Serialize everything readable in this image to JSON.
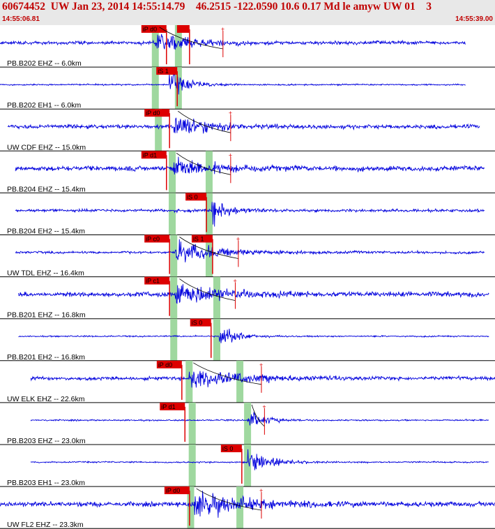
{
  "header": {
    "title": "60674452  UW Jan 23, 2014 14:55:14.79    46.2515 -122.0590 10.6 0.17 Md le amyw UW 01    3",
    "time_start": "14:55:06.81",
    "time_end": "14:55:39.00"
  },
  "colors": {
    "trace": "#0000dd",
    "pick": "#dd0000",
    "window": "#9fd89f",
    "header_text": "#c00000",
    "separator": "#000000"
  },
  "chart_data": {
    "type": "line",
    "x_unit": "seconds",
    "x_range": [
      0,
      32.19
    ],
    "channels": [
      {
        "label": "PB.B202 EHZ -- 6.0km",
        "trace_start": 0.0,
        "trace_end": 30.3,
        "p_pick": {
          "label": "iP d0",
          "time": 10.1
        },
        "s_pick": {
          "label": "",
          "time": 11.6
        },
        "s_window": 11.6,
        "p_window": 10.1,
        "onset": 10.1,
        "coda_end": 13.5,
        "amp": 0.55,
        "noise": 0.07,
        "clip": 14.5
      },
      {
        "label": "PB.B202 EH1 -- 6.0km",
        "trace_start": 0.0,
        "trace_end": 30.3,
        "p_pick": null,
        "s_pick": {
          "label": "iS 1",
          "time": 10.8
        },
        "s_window": 11.6,
        "p_window": 10.1,
        "onset": 11.0,
        "coda_end": 13.0,
        "amp": 0.6,
        "noise": 0.03,
        "clip": null
      },
      {
        "label": "UW CDF EHZ -- 15.0km",
        "trace_start": 0.5,
        "trace_end": 31.2,
        "p_pick": {
          "label": "iP d0",
          "time": 10.3
        },
        "s_pick": null,
        "s_window": null,
        "p_window": 10.3,
        "onset": 11.3,
        "coda_end": 15.0,
        "amp": 0.55,
        "noise": 0.08,
        "clip": 15.0
      },
      {
        "label": "PB.B204 EHZ -- 15.4km",
        "trace_start": 1.0,
        "trace_end": 31.5,
        "p_pick": {
          "label": "iP d1",
          "time": 10.1
        },
        "s_pick": null,
        "s_window": 13.6,
        "p_window": 11.2,
        "onset": 11.2,
        "coda_end": 15.0,
        "amp": 0.5,
        "noise": 0.1,
        "clip": 15.0
      },
      {
        "label": "PB.B204 EH2 -- 15.4km",
        "trace_start": 1.0,
        "trace_end": 31.5,
        "p_pick": null,
        "s_pick": {
          "label": "iS 0",
          "time": 12.7
        },
        "s_window": 13.6,
        "p_window": 11.2,
        "onset": 13.7,
        "coda_end": 15.5,
        "amp": 0.6,
        "noise": 0.06,
        "clip": null
      },
      {
        "label": "UW TDL EHZ -- 16.4km",
        "trace_start": 1.0,
        "trace_end": 31.5,
        "p_pick": {
          "label": "iP c0",
          "time": 10.3
        },
        "s_pick": {
          "label": "iS 1",
          "time": 13.1
        },
        "s_window": 13.6,
        "p_window": 11.3,
        "onset": 11.4,
        "coda_end": 16.0,
        "amp": 0.5,
        "noise": 0.05,
        "clip": 15.5
      },
      {
        "label": "PB.B201 EHZ -- 16.8km",
        "trace_start": 1.2,
        "trace_end": 31.8,
        "p_pick": {
          "label": "iP c1",
          "time": 10.3
        },
        "s_pick": null,
        "s_window": 14.1,
        "p_window": 11.3,
        "onset": 11.4,
        "coda_end": 16.0,
        "amp": 0.55,
        "noise": 0.1,
        "clip": 15.3
      },
      {
        "label": "PB.B201 EH2 -- 16.8km",
        "trace_start": 1.2,
        "trace_end": 31.8,
        "p_pick": null,
        "s_pick": {
          "label": "iS 0",
          "time": 13.0
        },
        "s_window": 14.1,
        "p_window": 11.3,
        "onset": 14.2,
        "coda_end": 16.0,
        "amp": 0.6,
        "noise": 0.03,
        "clip": null
      },
      {
        "label": "UW ELK EHZ -- 22.6km",
        "trace_start": 2.0,
        "trace_end": 32.19,
        "p_pick": {
          "label": "iP d0",
          "time": 11.1
        },
        "s_pick": null,
        "s_window": 15.6,
        "p_window": 12.3,
        "onset": 12.3,
        "coda_end": 18.0,
        "amp": 0.45,
        "noise": 0.07,
        "clip": 17.0
      },
      {
        "label": "PB.B203 EHZ -- 23.0km",
        "trace_start": 2.0,
        "trace_end": 31.8,
        "p_pick": {
          "label": "iP d1",
          "time": 11.3
        },
        "s_pick": null,
        "s_window": 16.1,
        "p_window": 12.5,
        "onset": 16.1,
        "coda_end": 18.0,
        "amp": 0.45,
        "noise": 0.03,
        "clip": 17.2
      },
      {
        "label": "PB.B203 EH1 -- 23.0km",
        "trace_start": 2.0,
        "trace_end": 31.8,
        "p_pick": null,
        "s_pick": {
          "label": "iS 0",
          "time": 15.0
        },
        "s_window": 16.1,
        "p_window": 12.5,
        "onset": 16.1,
        "coda_end": 18.5,
        "amp": 0.55,
        "noise": 0.03,
        "clip": null
      },
      {
        "label": "UW FL2 EHZ -- 23.3km",
        "trace_start": 0.0,
        "trace_end": 32.19,
        "p_pick": {
          "label": "iP d0",
          "time": 11.6
        },
        "s_pick": null,
        "s_window": 15.6,
        "p_window": 12.4,
        "onset": 12.5,
        "coda_end": 18.0,
        "amp": 0.55,
        "noise": 0.1,
        "clip": 17.0
      }
    ]
  }
}
